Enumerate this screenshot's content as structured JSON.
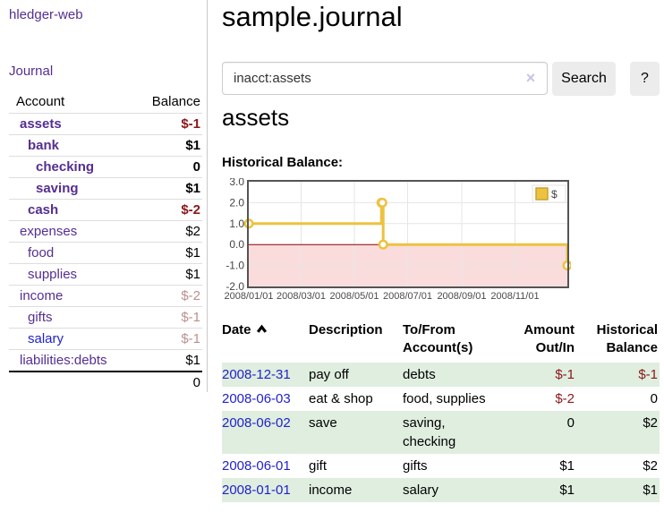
{
  "brand": "hledger-web",
  "nav": {
    "journal": "Journal"
  },
  "sidebar": {
    "columns": {
      "account": "Account",
      "balance": "Balance"
    },
    "accounts": [
      {
        "name": "assets",
        "indent": 1,
        "bold": true,
        "name_class": "purple",
        "balance": "$-1",
        "balance_class": "neg"
      },
      {
        "name": "bank",
        "indent": 2,
        "bold": true,
        "name_class": "purple",
        "balance": "$1",
        "balance_class": ""
      },
      {
        "name": "checking",
        "indent": 3,
        "bold": true,
        "name_class": "purple",
        "balance": "0",
        "balance_class": ""
      },
      {
        "name": "saving",
        "indent": 3,
        "bold": true,
        "name_class": "purple",
        "balance": "$1",
        "balance_class": ""
      },
      {
        "name": "cash",
        "indent": 2,
        "bold": true,
        "name_class": "purple",
        "balance": "$-2",
        "balance_class": "neg"
      },
      {
        "name": "expenses",
        "indent": 1,
        "bold": false,
        "name_class": "purple",
        "balance": "$2",
        "balance_class": ""
      },
      {
        "name": "food",
        "indent": 2,
        "bold": false,
        "name_class": "purple",
        "balance": "$1",
        "balance_class": ""
      },
      {
        "name": "supplies",
        "indent": 2,
        "bold": false,
        "name_class": "purple",
        "balance": "$1",
        "balance_class": ""
      },
      {
        "name": "income",
        "indent": 1,
        "bold": false,
        "name_class": "purple",
        "balance": "$-2",
        "balance_class": "rosy"
      },
      {
        "name": "gifts",
        "indent": 2,
        "bold": false,
        "name_class": "purple",
        "balance": "$-1",
        "balance_class": "rosy"
      },
      {
        "name": "salary",
        "indent": 2,
        "bold": false,
        "name_class": "blue",
        "balance": "$-1",
        "balance_class": "rosy"
      },
      {
        "name": "liabilities:debts",
        "indent": 1,
        "bold": false,
        "name_class": "purple",
        "balance": "$1",
        "balance_class": ""
      }
    ],
    "total": "0"
  },
  "main": {
    "title": "sample.journal",
    "search": {
      "value": "inacct:assets",
      "clear": "×",
      "search_button": "Search",
      "help_button": "?"
    },
    "heading": "assets",
    "chart_title": "Historical Balance:"
  },
  "chart_data": {
    "type": "line",
    "step": true,
    "title": "Historical Balance",
    "x_range": [
      "2008-01-01",
      "2008-12-31"
    ],
    "ylim": [
      -2,
      3
    ],
    "yticks": [
      3.0,
      2.0,
      1.0,
      0.0,
      -1.0,
      -2.0
    ],
    "xticks": [
      {
        "date": "2008-01-01",
        "label": "2008/01/01"
      },
      {
        "date": "2008-03-01",
        "label": "2008/03/01"
      },
      {
        "date": "2008-05-01",
        "label": "2008/05/01"
      },
      {
        "date": "2008-07-01",
        "label": "2008/07/01"
      },
      {
        "date": "2008-09-01",
        "label": "2008/09/01"
      },
      {
        "date": "2008-11-01",
        "label": "2008/11/01"
      }
    ],
    "series": [
      {
        "name": "$",
        "color": "#EDC240",
        "points": [
          {
            "x": "2008-01-01",
            "y": 1
          },
          {
            "x": "2008-06-01",
            "y": 2
          },
          {
            "x": "2008-06-02",
            "y": 2
          },
          {
            "x": "2008-06-03",
            "y": 0
          },
          {
            "x": "2008-12-31",
            "y": -1
          }
        ]
      }
    ],
    "negative_fill": "#fbdcdc",
    "zero_line_color": "#8b0000",
    "grid_color": "#e6e6e6",
    "border_color": "#545454",
    "legend_position": "top-right",
    "legend_label": "$"
  },
  "transactions": {
    "headers": {
      "date": "Date",
      "description": "Description",
      "tofrom_1": "To/From",
      "tofrom_2": "Account(s)",
      "amount_1": "Amount",
      "amount_2": "Out/In",
      "balance_1": "Historical",
      "balance_2": "Balance"
    },
    "rows": [
      {
        "date": "2008-12-31",
        "description": "pay off",
        "accounts": "debts",
        "amount": "$-1",
        "amount_class": "neg",
        "balance": "$-1",
        "balance_class": "neg"
      },
      {
        "date": "2008-06-03",
        "description": "eat & shop",
        "accounts": "food, supplies",
        "amount": "$-2",
        "amount_class": "neg",
        "balance": "0",
        "balance_class": ""
      },
      {
        "date": "2008-06-02",
        "description": "save",
        "accounts": "saving, checking",
        "amount": "0",
        "amount_class": "",
        "balance": "$2",
        "balance_class": ""
      },
      {
        "date": "2008-06-01",
        "description": "gift",
        "accounts": "gifts",
        "amount": "$1",
        "amount_class": "",
        "balance": "$2",
        "balance_class": ""
      },
      {
        "date": "2008-01-01",
        "description": "income",
        "accounts": "salary",
        "amount": "$1",
        "amount_class": "",
        "balance": "$1",
        "balance_class": ""
      }
    ]
  },
  "colors": {
    "accent_gold": "#EDC240",
    "negative_strong": "#8b1717",
    "negative_soft": "#bc8f8f",
    "link_purple": "#552e91",
    "link_blue": "#2222cc",
    "row_stripe_green": "#dfeedf"
  }
}
